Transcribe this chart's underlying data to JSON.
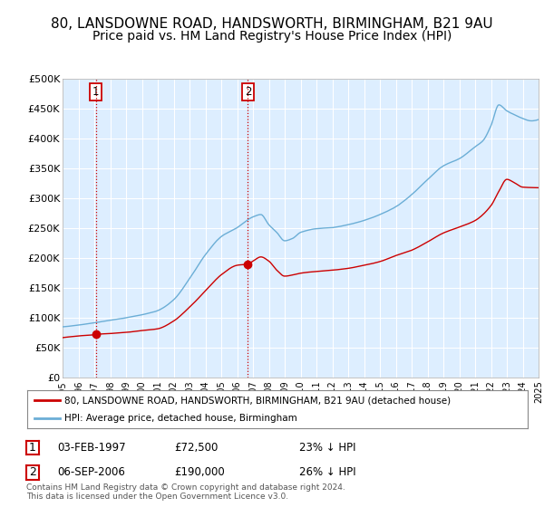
{
  "title1": "80, LANSDOWNE ROAD, HANDSWORTH, BIRMINGHAM, B21 9AU",
  "title2": "Price paid vs. HM Land Registry's House Price Index (HPI)",
  "ylim": [
    0,
    500000
  ],
  "yticks": [
    0,
    50000,
    100000,
    150000,
    200000,
    250000,
    300000,
    350000,
    400000,
    450000,
    500000
  ],
  "ytick_labels": [
    "£0",
    "£50K",
    "£100K",
    "£150K",
    "£200K",
    "£250K",
    "£300K",
    "£350K",
    "£400K",
    "£450K",
    "£500K"
  ],
  "bg_color": "#ddeeff",
  "grid_color": "#ffffff",
  "hpi_color": "#6baed6",
  "price_color": "#cc0000",
  "marker_color": "#cc0000",
  "vline_color": "#cc0000",
  "purchase1_year": 1997.09,
  "purchase1_price": 72500,
  "purchase2_year": 2006.68,
  "purchase2_price": 190000,
  "legend_label1": "80, LANSDOWNE ROAD, HANDSWORTH, BIRMINGHAM, B21 9AU (detached house)",
  "legend_label2": "HPI: Average price, detached house, Birmingham",
  "annotation1_date": "03-FEB-1997",
  "annotation1_price": "£72,500",
  "annotation1_hpi": "23% ↓ HPI",
  "annotation2_date": "06-SEP-2006",
  "annotation2_price": "£190,000",
  "annotation2_hpi": "26% ↓ HPI",
  "footer": "Contains HM Land Registry data © Crown copyright and database right 2024.\nThis data is licensed under the Open Government Licence v3.0.",
  "title_fontsize": 11,
  "subtitle_fontsize": 10
}
